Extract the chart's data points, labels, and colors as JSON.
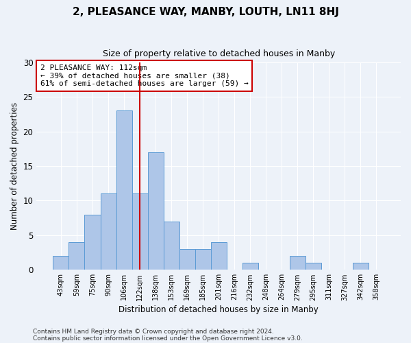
{
  "title": "2, PLEASANCE WAY, MANBY, LOUTH, LN11 8HJ",
  "subtitle": "Size of property relative to detached houses in Manby",
  "xlabel": "Distribution of detached houses by size in Manby",
  "ylabel": "Number of detached properties",
  "bar_labels": [
    "43sqm",
    "59sqm",
    "75sqm",
    "90sqm",
    "106sqm",
    "122sqm",
    "138sqm",
    "153sqm",
    "169sqm",
    "185sqm",
    "201sqm",
    "216sqm",
    "232sqm",
    "248sqm",
    "264sqm",
    "279sqm",
    "295sqm",
    "311sqm",
    "327sqm",
    "342sqm",
    "358sqm"
  ],
  "bar_values": [
    2,
    4,
    8,
    11,
    23,
    11,
    17,
    7,
    3,
    3,
    4,
    0,
    1,
    0,
    0,
    2,
    1,
    0,
    0,
    1,
    0
  ],
  "bar_color": "#aec6e8",
  "bar_edge_color": "#5b9bd5",
  "vline_x": 5.0,
  "vline_color": "#cc0000",
  "annotation_text": "2 PLEASANCE WAY: 112sqm\n← 39% of detached houses are smaller (38)\n61% of semi-detached houses are larger (59) →",
  "annotation_box_color": "#ffffff",
  "annotation_box_edge_color": "#cc0000",
  "ylim": [
    0,
    30
  ],
  "yticks": [
    0,
    5,
    10,
    15,
    20,
    25,
    30
  ],
  "footer_line1": "Contains HM Land Registry data © Crown copyright and database right 2024.",
  "footer_line2": "Contains public sector information licensed under the Open Government Licence v3.0.",
  "background_color": "#edf2f9",
  "plot_bg_color": "#edf2f9",
  "title_fontsize": 11,
  "subtitle_fontsize": 9
}
